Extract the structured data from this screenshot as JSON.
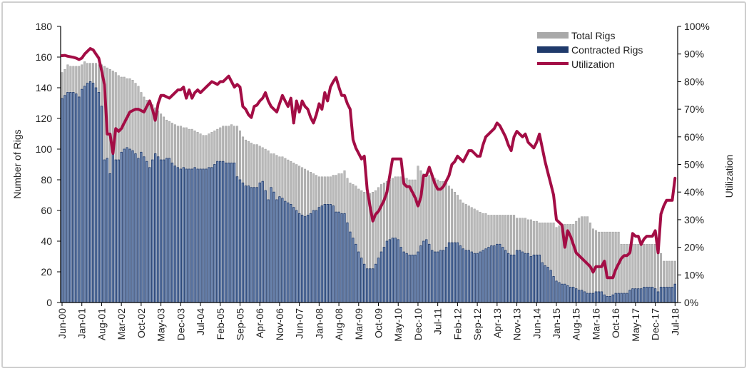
{
  "chart_data": {
    "type": "bar+line",
    "title": "",
    "xlabel": "",
    "ylabel": "Number of Rigs",
    "y2label": "Utilization",
    "ylim": [
      0,
      180
    ],
    "y2lim": [
      0,
      100
    ],
    "yticks": [
      "0",
      "20",
      "40",
      "60",
      "80",
      "100",
      "120",
      "140",
      "160",
      "180"
    ],
    "y2ticks": [
      "0%",
      "10%",
      "20%",
      "30%",
      "40%",
      "50%",
      "60%",
      "70%",
      "80%",
      "90%",
      "100%"
    ],
    "x_start": "Jun-00",
    "x_end": "Jul-18",
    "x_frequency": "monthly",
    "xtick_labels": [
      "Jun-00",
      "Jan-01",
      "Aug-01",
      "Mar-02",
      "Oct-02",
      "May-03",
      "Dec-03",
      "Jul-04",
      "Feb-05",
      "Sep-05",
      "Apr-06",
      "Nov-06",
      "Jun-07",
      "Jan-08",
      "Aug-08",
      "Mar-09",
      "Oct-09",
      "May-10",
      "Dec-10",
      "Jul-11",
      "Feb-12",
      "Sep-12",
      "Apr-13",
      "Nov-13",
      "Jun-14",
      "Jan-15",
      "Aug-15",
      "Mar-16",
      "Oct-16",
      "May-17",
      "Dec-17",
      "Jul-18"
    ],
    "grid": false,
    "legend_position": "top-right",
    "series": [
      {
        "name": "Total Rigs",
        "kind": "bar",
        "axis": "left",
        "color": "#a9a9a9",
        "values": [
          150,
          152,
          155,
          154,
          154,
          154,
          154,
          155,
          157,
          156,
          156,
          156,
          156,
          155,
          155,
          154,
          153,
          152,
          151,
          150,
          148,
          147,
          147,
          146,
          146,
          145,
          143,
          141,
          137,
          134,
          132,
          130,
          129,
          127,
          125,
          123,
          121,
          119,
          118,
          117,
          116,
          115,
          115,
          114,
          114,
          113,
          113,
          112,
          111,
          110,
          109,
          109,
          110,
          111,
          112,
          113,
          114,
          115,
          115,
          115,
          116,
          115,
          115,
          112,
          108,
          106,
          105,
          104,
          103,
          103,
          102,
          101,
          100,
          99,
          97,
          97,
          96,
          95,
          95,
          94,
          93,
          92,
          91,
          90,
          89,
          88,
          87,
          86,
          85,
          84,
          83,
          82,
          82,
          82,
          82,
          82,
          83,
          83,
          84,
          84,
          86,
          81,
          78,
          77,
          76,
          74,
          73,
          72,
          72,
          71,
          72,
          73,
          75,
          77,
          78,
          79,
          80,
          81,
          82,
          82,
          82,
          81,
          81,
          80,
          80,
          80,
          89,
          86,
          84,
          84,
          83,
          82,
          81,
          80,
          79,
          79,
          78,
          76,
          74,
          72,
          70,
          67,
          65,
          64,
          63,
          62,
          61,
          60,
          59,
          58,
          58,
          57,
          57,
          57,
          57,
          57,
          57,
          57,
          57,
          57,
          57,
          55,
          55,
          55,
          55,
          54,
          54,
          53,
          53,
          52,
          52,
          52,
          52,
          52,
          52,
          49,
          50,
          50,
          51,
          51,
          51,
          51,
          53,
          55,
          56,
          56,
          56,
          52,
          48,
          47,
          46,
          46,
          46,
          46,
          46,
          46,
          46,
          46,
          38,
          38,
          38,
          38,
          38,
          38,
          38,
          38,
          38,
          38,
          38,
          38,
          38,
          32,
          32,
          27,
          27,
          27,
          27,
          27
        ]
      },
      {
        "name": "Contracted Rigs",
        "kind": "bar",
        "axis": "left",
        "color": "#1f3a6b",
        "values": [
          133,
          135,
          137,
          137,
          137,
          136,
          134,
          139,
          141,
          143,
          144,
          143,
          140,
          137,
          128,
          93,
          94,
          84,
          97,
          93,
          93,
          98,
          100,
          101,
          100,
          99,
          97,
          94,
          98,
          95,
          92,
          88,
          93,
          97,
          95,
          93,
          93,
          94,
          94,
          91,
          89,
          88,
          87,
          88,
          87,
          87,
          87,
          88,
          87,
          87,
          87,
          87,
          88,
          88,
          90,
          92,
          92,
          92,
          91,
          91,
          91,
          91,
          82,
          80,
          78,
          76,
          76,
          75,
          75,
          75,
          78,
          79,
          73,
          67,
          75,
          72,
          67,
          69,
          68,
          66,
          65,
          64,
          62,
          60,
          58,
          57,
          56,
          57,
          58,
          60,
          60,
          62,
          63,
          64,
          64,
          64,
          63,
          59,
          59,
          58,
          58,
          52,
          46,
          42,
          38,
          33,
          29,
          25,
          22,
          22,
          22,
          25,
          29,
          33,
          36,
          40,
          41,
          42,
          42,
          41,
          36,
          33,
          32,
          31,
          31,
          31,
          33,
          37,
          40,
          41,
          38,
          34,
          33,
          33,
          34,
          34,
          36,
          39,
          39,
          39,
          39,
          37,
          35,
          34,
          34,
          33,
          32,
          32,
          33,
          34,
          35,
          36,
          37,
          37,
          38,
          38,
          36,
          34,
          32,
          31,
          31,
          34,
          34,
          33,
          32,
          32,
          30,
          31,
          31,
          31,
          26,
          24,
          23,
          21,
          17,
          14,
          13,
          12,
          12,
          11,
          10,
          10,
          9,
          8,
          8,
          7,
          6,
          6,
          6,
          7,
          7,
          7,
          5,
          4,
          4,
          5,
          6,
          6,
          6,
          6,
          6,
          8,
          9,
          9,
          9,
          9,
          10,
          10,
          10,
          10,
          9,
          7,
          10,
          10,
          10,
          10,
          10,
          12
        ]
      },
      {
        "name": "Utilization",
        "kind": "line",
        "axis": "right",
        "color": "#a30d45",
        "values": [
          89.4,
          89.5,
          89.2,
          89,
          88.8,
          88.5,
          88,
          88.5,
          90,
          91,
          92,
          91.5,
          90,
          88.5,
          84,
          79,
          61,
          61,
          54,
          63,
          62,
          63,
          65,
          67,
          69,
          69.5,
          70,
          70,
          69.5,
          69,
          71,
          73,
          70,
          66,
          72,
          75,
          75,
          74.5,
          74,
          75,
          76,
          77,
          77,
          78,
          74,
          77,
          74,
          76,
          77,
          76,
          77,
          78,
          79,
          80,
          79.5,
          79,
          80,
          80,
          81,
          82,
          80,
          78,
          79,
          78,
          71,
          70,
          68,
          67,
          71,
          71.5,
          73,
          74,
          76,
          73,
          71,
          70,
          69,
          72,
          75,
          73,
          71,
          74,
          65,
          73,
          69,
          73,
          71,
          70,
          67,
          65,
          68,
          72,
          70,
          76,
          73,
          78,
          80,
          81.5,
          78,
          75,
          75,
          72,
          70,
          59,
          56,
          54,
          52,
          53,
          41,
          35,
          29.5,
          32,
          33,
          35,
          37,
          40,
          46,
          52,
          52,
          52,
          52,
          43,
          42,
          42,
          40,
          38,
          35,
          38,
          46,
          46,
          49,
          46,
          43,
          41,
          41,
          42,
          44,
          46,
          50,
          51,
          53,
          52,
          51,
          53,
          55,
          55,
          54,
          53,
          53,
          57,
          60,
          61,
          62,
          63,
          65,
          64,
          62,
          60,
          57,
          55,
          60,
          62,
          61,
          60,
          61,
          58,
          57,
          56,
          58,
          61,
          56,
          51,
          47,
          43,
          39,
          30,
          29,
          28,
          20,
          26,
          24,
          21,
          18,
          17,
          16,
          15,
          14,
          13,
          11,
          13,
          13,
          13,
          15,
          9,
          9,
          9,
          12,
          14,
          16,
          17,
          17,
          18,
          25,
          24,
          24,
          21,
          23,
          24,
          24,
          24,
          26,
          18,
          32,
          35,
          37,
          37,
          37,
          45
        ]
      }
    ]
  }
}
